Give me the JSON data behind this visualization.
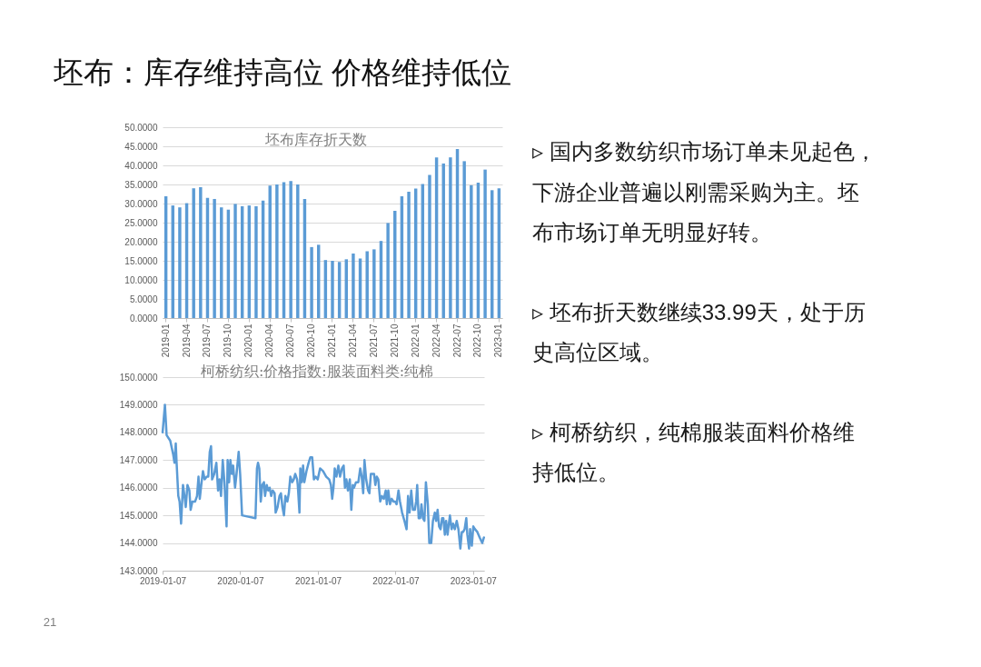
{
  "chart_data": [
    {
      "type": "other",
      "title": "坯布：库存维持高位 价格维持低位",
      "annotations": [
        "21"
      ]
    },
    {
      "type": "bar",
      "title": "坯布库存折天数",
      "categories": [
        "2019-01",
        null,
        null,
        "2019-04",
        null,
        null,
        "2019-07",
        null,
        null,
        "2019-10",
        null,
        null,
        "2020-01",
        null,
        null,
        "2020-04",
        null,
        null,
        "2020-07",
        null,
        null,
        "2020-10",
        null,
        null,
        "2021-01",
        null,
        null,
        "2021-04",
        null,
        null,
        "2021-07",
        null,
        null,
        "2021-10",
        null,
        null,
        "2022-01",
        null,
        null,
        "2022-04",
        null,
        null,
        "2022-07",
        null,
        null,
        "2022-10",
        null,
        null,
        "2023-01"
      ],
      "values": [
        31.9,
        29.5,
        29.0,
        30.1,
        34.0,
        34.3,
        31.5,
        31.2,
        29.0,
        28.4,
        29.9,
        29.3,
        29.5,
        29.3,
        30.8,
        34.7,
        35.0,
        35.6,
        35.9,
        35.0,
        31.2,
        18.6,
        19.2,
        15.2,
        15.0,
        14.7,
        15.4,
        16.9,
        15.6,
        17.5,
        18.0,
        20.2,
        24.9,
        28.1,
        31.9,
        33.1,
        33.9,
        35.1,
        37.5,
        42.1,
        40.5,
        42.1,
        44.3,
        41.1,
        34.8,
        35.5,
        38.9,
        33.5,
        34.0
      ],
      "color": "#5b9bd5",
      "ylim": [
        0,
        50
      ],
      "yticks": [
        {
          "value": 0,
          "label": "0.0000"
        },
        {
          "value": 5,
          "label": "5.0000"
        },
        {
          "value": 10,
          "label": "10.0000"
        },
        {
          "value": 15,
          "label": "15.0000"
        },
        {
          "value": 20,
          "label": "20.0000"
        },
        {
          "value": 25,
          "label": "25.0000"
        },
        {
          "value": 30,
          "label": "30.0000"
        },
        {
          "value": 35,
          "label": "35.0000"
        },
        {
          "value": 40,
          "label": "40.0000"
        },
        {
          "value": 45,
          "label": "45.0000"
        },
        {
          "value": 50,
          "label": "50.0000"
        }
      ],
      "grid": "y"
    },
    {
      "type": "line",
      "title": "柯桥纺织:价格指数:服装面料类:纯棉",
      "x": [
        "2019-01-07",
        "2019-01-18",
        "2019-01-26",
        "2019-02-12",
        "2019-02-26",
        "2019-03-04",
        "2019-03-10",
        "2019-03-14",
        "2019-03-22",
        "2019-03-28",
        "2019-04-04",
        "2019-04-13",
        "2019-04-20",
        "2019-04-26",
        "2019-05-04",
        "2019-05-13",
        "2019-05-19",
        "2019-05-27",
        "2019-06-09",
        "2019-06-18",
        "2019-06-25",
        "2019-07-01",
        "2019-07-08",
        "2019-07-16",
        "2019-07-24",
        "2019-08-03",
        "2019-08-10",
        "2019-08-17",
        "2019-08-23",
        "2019-08-28",
        "2019-09-07",
        "2019-09-17",
        "2019-09-25",
        "2019-10-02",
        "2019-10-09",
        "2019-10-17",
        "2019-10-25",
        "2019-11-04",
        "2019-11-09",
        "2019-11-16",
        "2019-11-22",
        "2019-11-29",
        "2019-12-05",
        "2019-12-14",
        "2019-12-21",
        "2019-12-31",
        "2020-01-07",
        "2020-01-16",
        "2020-03-19",
        "2020-03-26",
        "2020-03-31",
        "2020-04-06",
        "2020-04-13",
        "2020-04-20",
        "2020-04-28",
        "2020-05-03",
        "2020-05-11",
        "2020-05-18",
        "2020-05-25",
        "2020-06-01",
        "2020-06-08",
        "2020-06-17",
        "2020-06-22",
        "2020-07-01",
        "2020-07-10",
        "2020-07-17",
        "2020-07-24",
        "2020-07-31",
        "2020-08-07",
        "2020-08-16",
        "2020-08-23",
        "2020-08-30",
        "2020-09-08",
        "2020-09-15",
        "2020-09-22",
        "2020-10-01",
        "2020-10-04",
        "2020-10-12",
        "2020-10-16",
        "2020-10-23",
        "2020-10-29",
        "2020-11-04",
        "2020-11-14",
        "2020-11-24",
        "2020-12-02",
        "2020-12-11",
        "2020-12-19",
        "2020-12-27",
        "2021-01-06",
        "2021-01-17",
        "2021-01-31",
        "2021-02-15",
        "2021-03-01",
        "2021-03-09",
        "2021-03-15",
        "2021-03-21",
        "2021-03-27",
        "2021-04-04",
        "2021-04-13",
        "2021-04-21",
        "2021-04-30",
        "2021-05-08",
        "2021-05-14",
        "2021-05-21",
        "2021-05-28",
        "2021-06-06",
        "2021-06-13",
        "2021-06-20",
        "2021-06-26",
        "2021-07-05",
        "2021-07-16",
        "2021-07-25",
        "2021-08-01",
        "2021-08-08",
        "2021-08-14",
        "2021-08-22",
        "2021-08-31",
        "2021-09-06",
        "2021-09-13",
        "2021-09-20",
        "2021-09-28",
        "2021-10-04",
        "2021-10-11",
        "2021-10-18",
        "2021-10-27",
        "2021-11-04",
        "2021-11-13",
        "2021-11-22",
        "2021-11-27",
        "2021-12-04",
        "2021-12-12",
        "2021-12-20",
        "2021-12-29",
        "2022-01-06",
        "2022-01-12",
        "2022-01-21",
        "2022-01-28",
        "2022-02-07",
        "2022-02-18",
        "2022-02-28",
        "2022-03-07",
        "2022-03-14",
        "2022-03-22",
        "2022-03-30",
        "2022-04-08",
        "2022-04-14",
        "2022-04-19",
        "2022-04-26",
        "2022-05-03",
        "2022-05-09",
        "2022-05-16",
        "2022-05-23",
        "2022-05-30",
        "2022-06-08",
        "2022-06-15",
        "2022-06-24",
        "2022-07-02",
        "2022-07-11",
        "2022-07-17",
        "2022-07-24",
        "2022-07-31",
        "2022-08-07",
        "2022-08-14",
        "2022-08-20",
        "2022-08-27",
        "2022-09-02",
        "2022-09-09",
        "2022-09-15",
        "2022-09-20",
        "2022-09-28",
        "2022-10-05",
        "2022-10-13",
        "2022-10-22",
        "2022-10-30",
        "2022-11-08",
        "2022-11-15",
        "2022-11-21",
        "2022-11-28",
        "2022-12-06",
        "2022-12-11",
        "2022-12-19",
        "2022-12-24",
        "2023-01-01",
        "2023-01-08",
        "2023-01-16",
        "2023-01-27",
        "2023-02-07",
        "2023-02-19",
        "2023-02-27"
      ],
      "values": [
        148.0,
        149.0,
        147.9,
        147.7,
        147.2,
        146.9,
        147.6,
        146.9,
        145.7,
        145.5,
        144.7,
        146.1,
        145.7,
        145.3,
        146.1,
        145.9,
        145.2,
        145.5,
        145.5,
        145.7,
        146.4,
        145.6,
        146.1,
        146.6,
        146.3,
        146.4,
        146.4,
        147.3,
        147.5,
        146.3,
        146.5,
        146.9,
        145.9,
        146.3,
        145.7,
        147.0,
        146.2,
        144.6,
        147.0,
        146.2,
        147.0,
        146.5,
        146.8,
        146.0,
        146.5,
        147.3,
        146.5,
        145.0,
        144.9,
        146.7,
        146.9,
        146.7,
        145.5,
        146.1,
        146.2,
        145.7,
        146.1,
        145.9,
        146.0,
        145.7,
        145.9,
        145.8,
        145.1,
        145.3,
        145.7,
        145.8,
        145.3,
        145.0,
        145.7,
        145.5,
        145.8,
        146.4,
        146.2,
        146.3,
        146.5,
        146.3,
        146.1,
        145.1,
        146.7,
        146.2,
        146.8,
        146.2,
        146.6,
        146.9,
        147.1,
        147.1,
        146.3,
        146.4,
        146.3,
        146.7,
        146.6,
        146.4,
        146.3,
        146.1,
        145.6,
        146.0,
        146.7,
        146.4,
        146.8,
        146.4,
        146.7,
        146.8,
        146.0,
        146.3,
        145.9,
        146.3,
        145.2,
        146.1,
        146.0,
        146.2,
        146.2,
        146.7,
        146.4,
        145.8,
        147.0,
        146.3,
        145.9,
        145.8,
        146.5,
        146.5,
        146.5,
        146.1,
        146.4,
        146.3,
        145.5,
        145.7,
        145.6,
        145.9,
        145.4,
        145.9,
        145.4,
        145.6,
        145.5,
        145.5,
        145.4,
        145.9,
        145.5,
        145.1,
        144.8,
        144.5,
        145.7,
        145.1,
        145.9,
        145.2,
        145.2,
        145.5,
        146.1,
        144.9,
        144.9,
        145.4,
        144.9,
        144.8,
        146.2,
        145.4,
        144.0,
        144.0,
        144.8,
        145.1,
        144.8,
        145.2,
        144.6,
        144.5,
        144.9,
        144.9,
        144.3,
        144.8,
        144.3,
        144.7,
        145.0,
        144.5,
        144.7,
        144.5,
        144.8,
        144.5,
        143.8,
        144.4,
        144.4,
        144.5,
        144.9,
        144.3,
        143.8,
        144.5,
        143.9,
        144.6,
        144.5,
        144.4,
        144.2,
        144.0,
        144.2
      ],
      "color": "#5b9bd5",
      "xlim": [
        "2019-01-07",
        "2023-02-28"
      ],
      "xticks": [
        "2019-01-07",
        "2020-01-07",
        "2021-01-07",
        "2022-01-07",
        "2023-01-07"
      ],
      "ylim": [
        143,
        150
      ],
      "yticks": [
        {
          "value": 143,
          "label": "143.0000"
        },
        {
          "value": 144,
          "label": "144.0000"
        },
        {
          "value": 145,
          "label": "145.0000"
        },
        {
          "value": 146,
          "label": "146.0000"
        },
        {
          "value": 147,
          "label": "147.0000"
        },
        {
          "value": 148,
          "label": "148.0000"
        },
        {
          "value": 149,
          "label": "149.0000"
        },
        {
          "value": 150,
          "label": "150.0000"
        }
      ],
      "grid": "y"
    },
    {
      "type": "other",
      "annotations": [
        "▹ 国内多数纺织市场订单未见起色，下游企业普遍以刚需采购为主。坯布市场订单无明显好转。",
        "▹ 坯布折天数继续33.99天，处于历史高位区域。",
        "▹ 柯桥纺织，纯棉服装面料价格维持低位。"
      ]
    }
  ]
}
